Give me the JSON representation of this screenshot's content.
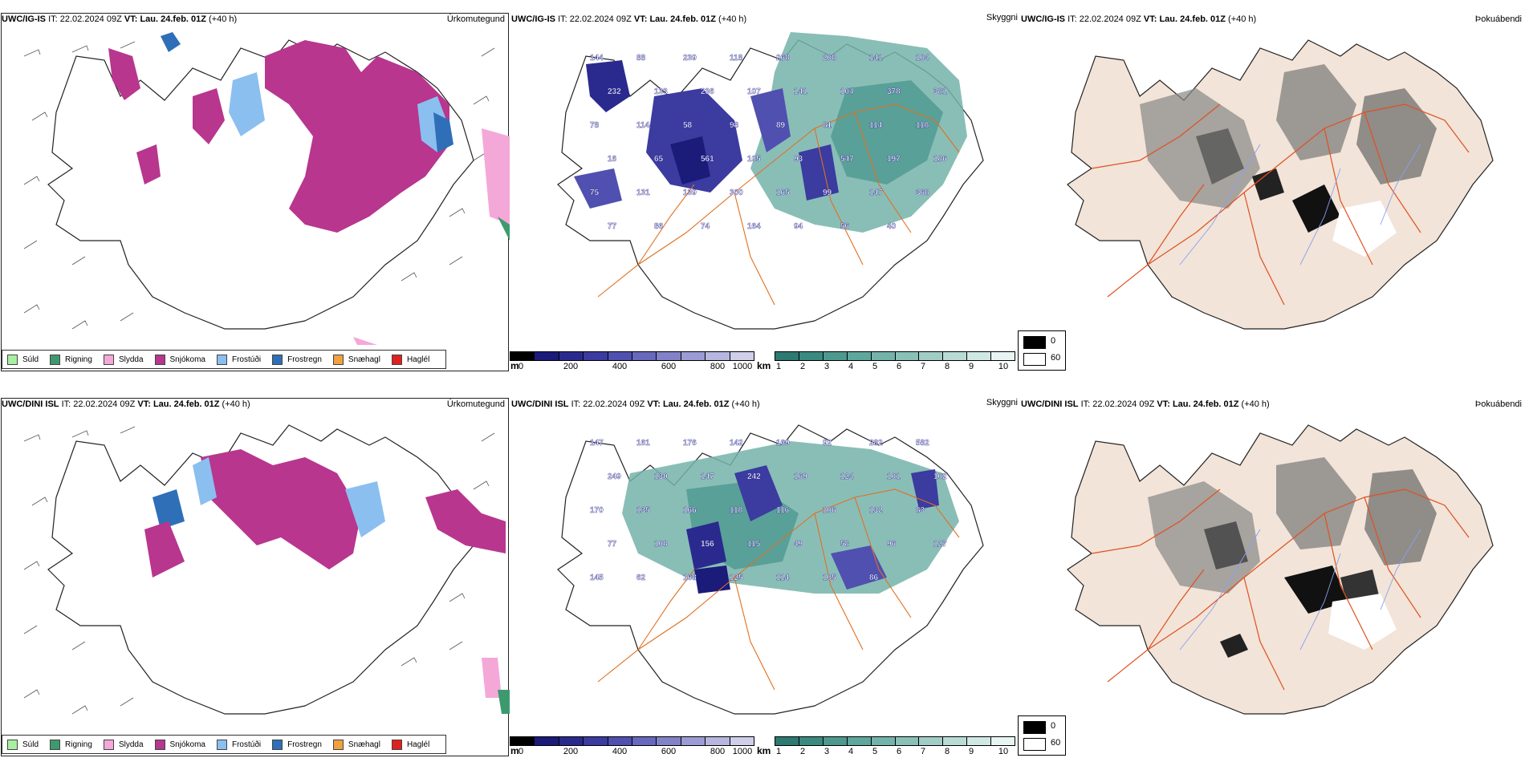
{
  "rows": [
    {
      "model": "UWC/IG-IS",
      "init_label": "IT:",
      "init": "22.02.2024 09Z",
      "valid_label": "VT:",
      "valid": "Lau. 24.feb. 01Z",
      "lead": "(+40 h)",
      "titles": {
        "precip_type": "Úrkomutegund",
        "cloud": "Skyggni",
        "fog": "Þokuábendi"
      }
    },
    {
      "model": "UWC/DINI ISL",
      "init_label": "IT:",
      "init": "22.02.2024 09Z",
      "valid_label": "VT:",
      "valid": "Lau. 24.feb. 01Z",
      "lead": "(+40 h)",
      "titles": {
        "precip_type": "Úrkomutegund",
        "cloud": "Skyggni",
        "fog": "Þokuábendi"
      }
    }
  ],
  "precip_legend": [
    {
      "label": "Súld",
      "color": "#a8f0a0"
    },
    {
      "label": "Rigning",
      "color": "#3d9a6e"
    },
    {
      "label": "Slydda",
      "color": "#f4a8d8"
    },
    {
      "label": "Snjókoma",
      "color": "#b8368e"
    },
    {
      "label": "Frostúði",
      "color": "#8bbff0"
    },
    {
      "label": "Frostregn",
      "color": "#2e6fb8"
    },
    {
      "label": "Snæhagl",
      "color": "#f0a040"
    },
    {
      "label": "Haglél",
      "color": "#e02020"
    }
  ],
  "cloud_base_bar": {
    "unit": "m",
    "ticks": [
      "0",
      "200",
      "400",
      "600",
      "800",
      "1000"
    ],
    "colors": [
      "#000000",
      "#1b1b7a",
      "#2a2a8e",
      "#3b3ba0",
      "#5050b0",
      "#6868bc",
      "#8282c8",
      "#9c9cd4",
      "#b6b6e0",
      "#cfcfea"
    ]
  },
  "visibility_bar": {
    "unit": "km",
    "ticks": [
      "1",
      "2",
      "3",
      "4",
      "5",
      "6",
      "7",
      "8",
      "9",
      "10"
    ],
    "colors": [
      "#2c7a72",
      "#3b8a80",
      "#4d9990",
      "#5fa69c",
      "#74b3aa",
      "#8ac0b8",
      "#a1cdc6",
      "#b9dbd5",
      "#d0e8e3",
      "#e8f4f2"
    ]
  },
  "fog_key": {
    "high": "0",
    "low": "60",
    "high_color": "#000000",
    "low_color": "#ffffff"
  },
  "cloud_labels_top": [
    "144",
    "88",
    "239",
    "118",
    "268",
    "208",
    "141",
    "104",
    "232",
    "133",
    "236",
    "107",
    "141",
    "104",
    "378",
    "381",
    "78",
    "114",
    "58",
    "98",
    "89",
    "81",
    "114",
    "118",
    "16",
    "65",
    "561",
    "105",
    "93",
    "547",
    "197",
    "186",
    "75",
    "131",
    "139",
    "300",
    "165",
    "99",
    "147",
    "368",
    "77",
    "86",
    "74",
    "164",
    "94",
    "56",
    "40"
  ],
  "cloud_labels_bottom": [
    "147",
    "161",
    "176",
    "142",
    "169",
    "92",
    "282",
    "582",
    "249",
    "130",
    "147",
    "242",
    "169",
    "124",
    "101",
    "102",
    "170",
    "135",
    "166",
    "118",
    "116",
    "106",
    "132",
    "83",
    "77",
    "108",
    "156",
    "115",
    "49",
    "58",
    "96",
    "127",
    "145",
    "62",
    "168",
    "125",
    "114",
    "105",
    "86"
  ]
}
